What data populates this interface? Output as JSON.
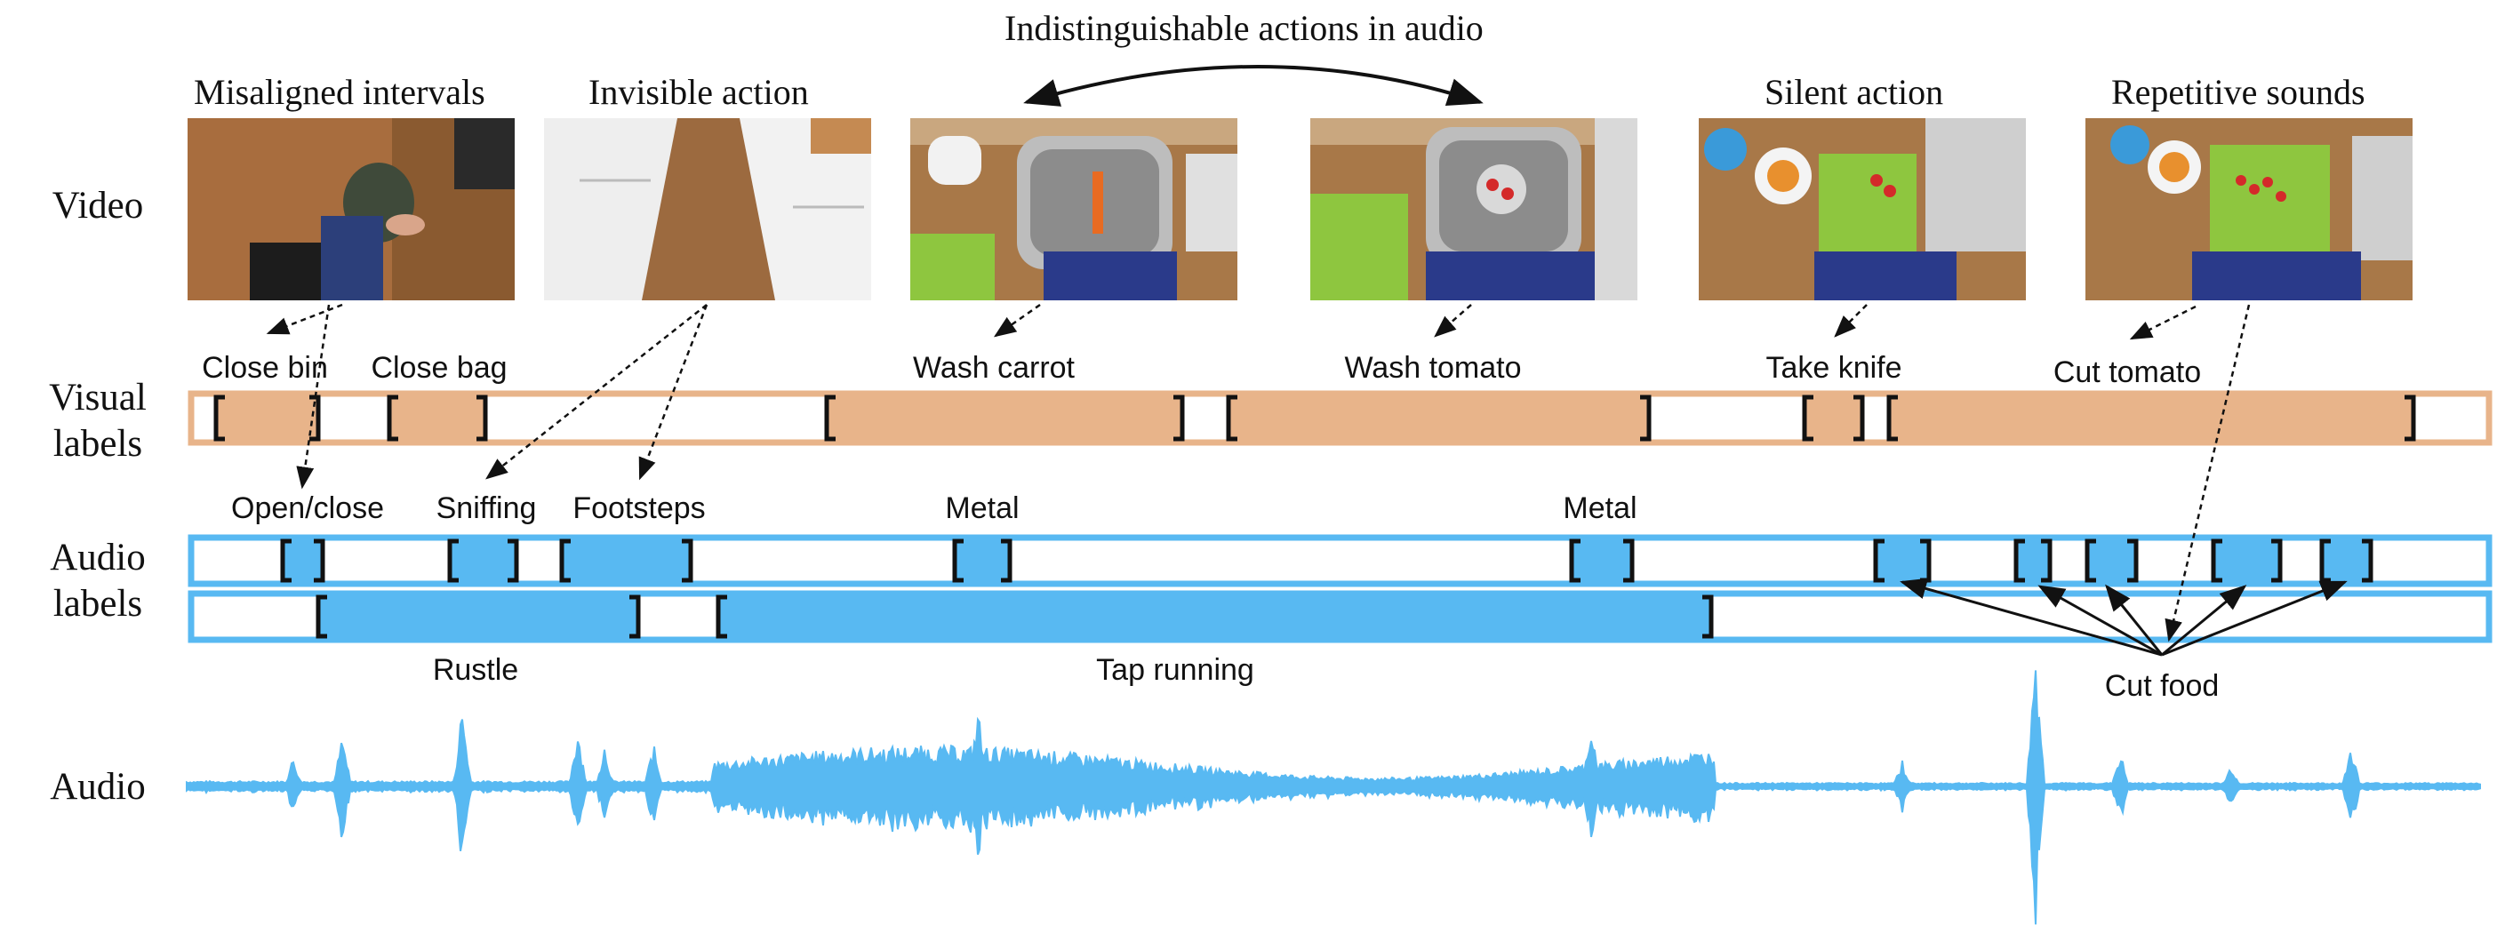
{
  "row_labels": {
    "video": "Video",
    "visual": "Visual\nlabels",
    "audio_labels": "Audio\nlabels",
    "audio": "Audio"
  },
  "top_title": "Indistinguishable actions in audio",
  "thumb_titles": {
    "misaligned": "Misaligned intervals",
    "invisible": "Invisible action",
    "silent": "Silent action",
    "repetitive": "Repetitive sounds"
  },
  "visual_labels": [
    "Close bin",
    "Close bag",
    "Wash carrot",
    "Wash tomato",
    "Take knife",
    "Cut tomato"
  ],
  "audio_labels_top": [
    "Open/close",
    "Sniffing",
    "Footsteps",
    "Metal",
    "Metal"
  ],
  "audio_labels_bottom": [
    "Rustle",
    "Tap running"
  ],
  "cut_food": "Cut food",
  "colors": {
    "visual": "#e8b48a",
    "audio": "#58b9f2"
  }
}
